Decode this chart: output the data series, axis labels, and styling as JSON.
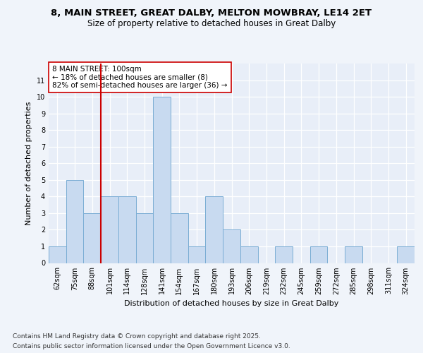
{
  "title1": "8, MAIN STREET, GREAT DALBY, MELTON MOWBRAY, LE14 2ET",
  "title2": "Size of property relative to detached houses in Great Dalby",
  "xlabel": "Distribution of detached houses by size in Great Dalby",
  "ylabel": "Number of detached properties",
  "categories": [
    "62sqm",
    "75sqm",
    "88sqm",
    "101sqm",
    "114sqm",
    "128sqm",
    "141sqm",
    "154sqm",
    "167sqm",
    "180sqm",
    "193sqm",
    "206sqm",
    "219sqm",
    "232sqm",
    "245sqm",
    "259sqm",
    "272sqm",
    "285sqm",
    "298sqm",
    "311sqm",
    "324sqm"
  ],
  "values": [
    1,
    5,
    3,
    4,
    4,
    3,
    10,
    3,
    1,
    4,
    2,
    1,
    0,
    1,
    0,
    1,
    0,
    1,
    0,
    0,
    1
  ],
  "bar_color": "#c8daf0",
  "bar_edge_color": "#7aadd4",
  "highlight_index": 3,
  "highlight_line_color": "#cc0000",
  "annotation_text": "8 MAIN STREET: 100sqm\n← 18% of detached houses are smaller (8)\n82% of semi-detached houses are larger (36) →",
  "annotation_box_color": "#ffffff",
  "annotation_box_edge_color": "#cc0000",
  "ylim": [
    0,
    12
  ],
  "yticks": [
    0,
    1,
    2,
    3,
    4,
    5,
    6,
    7,
    8,
    9,
    10,
    11,
    12
  ],
  "footer1": "Contains HM Land Registry data © Crown copyright and database right 2025.",
  "footer2": "Contains public sector information licensed under the Open Government Licence v3.0.",
  "bg_color": "#f0f4fa",
  "plot_bg_color": "#e8eef8",
  "title_fontsize": 9.5,
  "subtitle_fontsize": 8.5,
  "axis_label_fontsize": 8,
  "tick_fontsize": 7,
  "annotation_fontsize": 7.5,
  "footer_fontsize": 6.5
}
